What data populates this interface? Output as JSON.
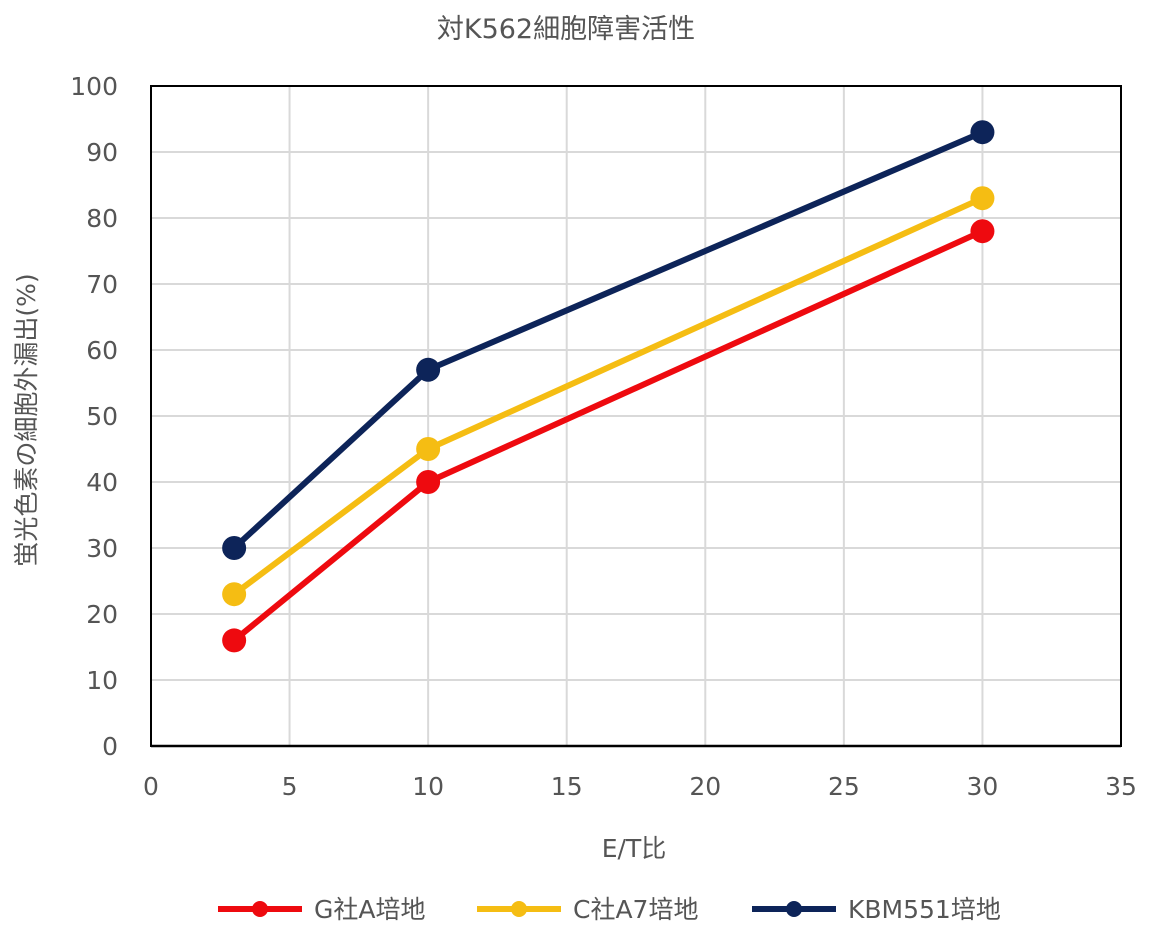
{
  "chart_data": {
    "type": "line",
    "title": "対K562細胞障害活性",
    "xlabel": "E/T比",
    "ylabel": "蛍光色素の細胞外漏出(%)",
    "x": [
      3,
      10,
      30
    ],
    "xlim": [
      0,
      35
    ],
    "ylim": [
      0,
      100
    ],
    "x_ticks": [
      "0",
      "5",
      "10",
      "15",
      "20",
      "25",
      "30",
      "35"
    ],
    "x_tick_values": [
      0,
      5,
      10,
      15,
      20,
      25,
      30,
      35
    ],
    "y_ticks": [
      "0",
      "10",
      "20",
      "30",
      "40",
      "50",
      "60",
      "70",
      "80",
      "90",
      "100"
    ],
    "y_tick_values": [
      0,
      10,
      20,
      30,
      40,
      50,
      60,
      70,
      80,
      90,
      100
    ],
    "grid": true,
    "legend_position": "bottom",
    "series": [
      {
        "name": "G社A培地",
        "color": "#ee0a0f",
        "values": [
          16,
          40,
          78
        ]
      },
      {
        "name": "C社A7培地",
        "color": "#f5bd13",
        "values": [
          23,
          45,
          83
        ]
      },
      {
        "name": "KBM551培地",
        "color": "#0d2459",
        "values": [
          30,
          57,
          93
        ]
      }
    ]
  }
}
